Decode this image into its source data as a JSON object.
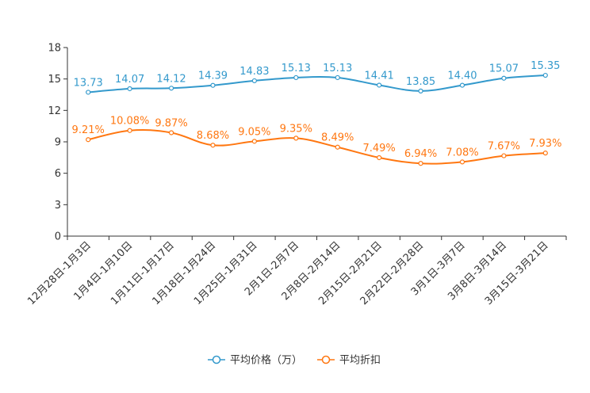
{
  "chart_data": {
    "type": "line",
    "title": "",
    "xlabel": "",
    "ylabel": "",
    "ylim": [
      0,
      18
    ],
    "yticks": [
      0,
      3,
      6,
      9,
      12,
      15,
      18
    ],
    "grid": false,
    "legend_position": "bottom-center",
    "categories": [
      "12月28日-1月3日",
      "1月4日-1月10日",
      "1月11日-1月17日",
      "1月18日-1月24日",
      "1月25日-1月31日",
      "2月1日-2月7日",
      "2月8日-2月14日",
      "2月15日-2月21日",
      "2月22日-2月28日",
      "3月1日-3月7日",
      "3月8日-3月14日",
      "3月15日-3月21日"
    ],
    "series": [
      {
        "name": "平均价格（万）",
        "color": "#3399cc",
        "values": [
          13.73,
          14.07,
          14.12,
          14.39,
          14.83,
          15.13,
          15.13,
          14.41,
          13.85,
          14.4,
          15.07,
          15.35
        ],
        "labels": [
          "13.73",
          "14.07",
          "14.12",
          "14.39",
          "14.83",
          "15.13",
          "15.13",
          "14.41",
          "13.85",
          "14.40",
          "15.07",
          "15.35"
        ]
      },
      {
        "name": "平均折扣",
        "color": "#ff7711",
        "values": [
          9.21,
          10.08,
          9.87,
          8.68,
          9.05,
          9.35,
          8.49,
          7.49,
          6.94,
          7.08,
          7.67,
          7.93
        ],
        "labels": [
          "9.21%",
          "10.08%",
          "9.87%",
          "8.68%",
          "9.05%",
          "9.35%",
          "8.49%",
          "7.49%",
          "6.94%",
          "7.08%",
          "7.67%",
          "7.93%"
        ]
      }
    ]
  }
}
